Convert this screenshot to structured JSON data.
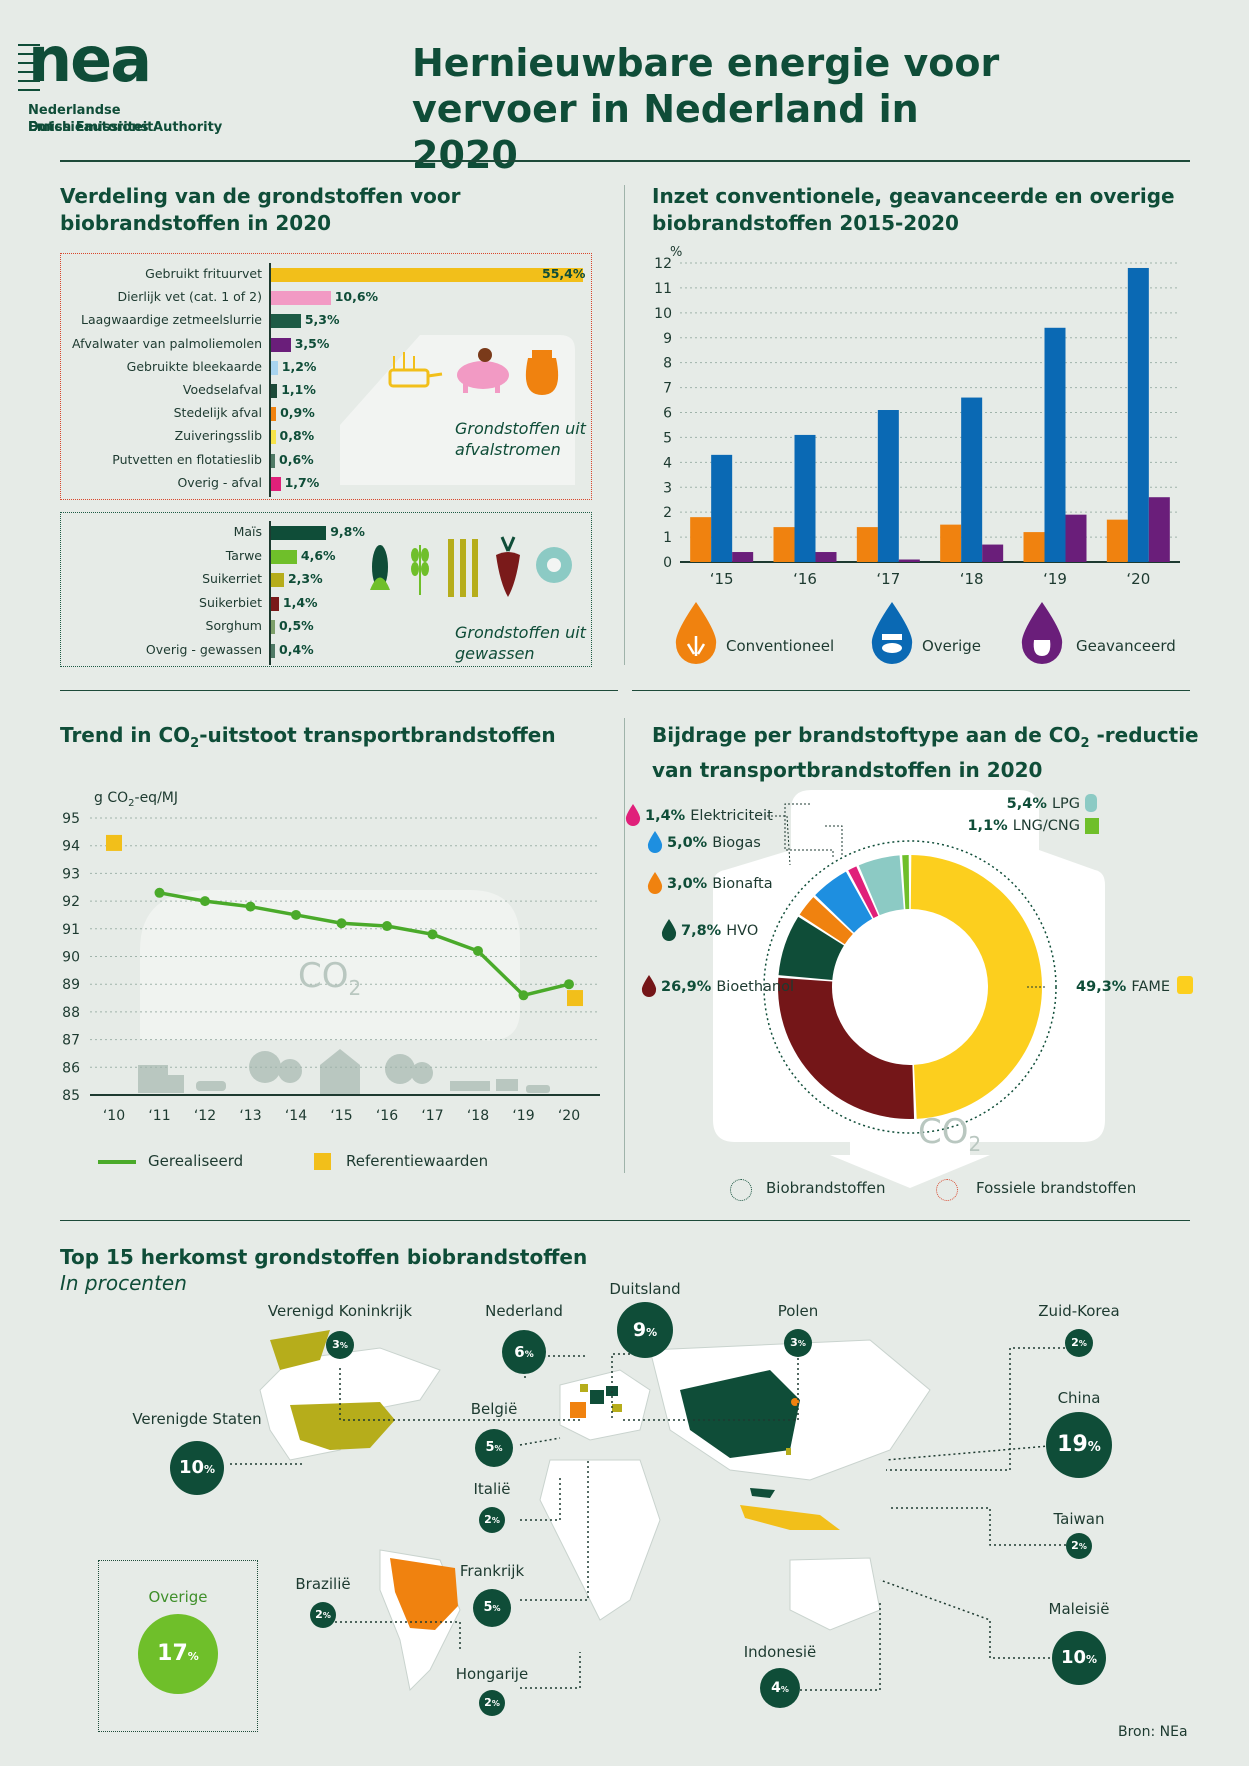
{
  "header": {
    "logo_word": "nea",
    "logo_line1": "Nederlandse Emissieautoriteit",
    "logo_line2": "Dutch Emissions Authority",
    "title_line1": "Hernieuwbare energie voor",
    "title_line2": "vervoer in Nederland in 2020"
  },
  "colors": {
    "dark_green": "#0f4d38",
    "orange": "#f0820f",
    "blue": "#0a69b4",
    "purple": "#6a1e7a",
    "line_green": "#4aaa2a",
    "yellow": "#f2bf1a",
    "pink": "#f29ac4"
  },
  "feedstock": {
    "title_line1": "Verdeling van de grondstoffen voor",
    "title_line2": "biobrandstoffen in 2020",
    "waste_label_line1": "Grondstoffen uit",
    "waste_label_line2": "afvalstromen",
    "crops_label_line1": "Grondstoffen uit",
    "crops_label_line2": "gewassen"
  },
  "usage": {
    "title_line1": "Inzet conventionele, geavanceerde en overige",
    "title_line2": "biobrandstoffen 2015-2020",
    "unit": "%",
    "legend": [
      "Conventioneel",
      "Overige",
      "Geavanceerd"
    ]
  },
  "trend": {
    "title_pre": "Trend in CO",
    "title_sub": "2",
    "title_post": "-uitstoot transportbrandstoffen",
    "unit_pre": "g CO",
    "unit_sub": "2",
    "unit_post": "-eq/MJ",
    "co2_label": "CO",
    "co2_sub": "2",
    "legend_realised": "Gerealiseerd",
    "legend_reference": "Referentiewaarden"
  },
  "reduction": {
    "title_pre": "Bijdrage per brandstoftype aan de CO",
    "title_sub": "2",
    "title_post": " -reductie",
    "title_line2": "van transportbrandstoffen in 2020",
    "co2_label": "CO",
    "co2_sub": "2",
    "legend_bio": "Biobrandstoffen",
    "legend_fossil": "Fossiele brandstoffen"
  },
  "origin": {
    "title": "Top 15 herkomst grondstoffen biobrandstoffen",
    "subtitle": "In procenten",
    "overige_label": "Overige",
    "overige_value": "17",
    "source": "Bron: NEa",
    "countries": [
      {
        "name": "Verenigd Koninkrijk",
        "value": "3"
      },
      {
        "name": "Nederland",
        "value": "6"
      },
      {
        "name": "Duitsland",
        "value": "9"
      },
      {
        "name": "Polen",
        "value": "3"
      },
      {
        "name": "Zuid-Korea",
        "value": "2"
      },
      {
        "name": "Verenigde Staten",
        "value": "10"
      },
      {
        "name": "België",
        "value": "5"
      },
      {
        "name": "China",
        "value": "19"
      },
      {
        "name": "Italië",
        "value": "2"
      },
      {
        "name": "Taiwan",
        "value": "2"
      },
      {
        "name": "Brazilië",
        "value": "2"
      },
      {
        "name": "Frankrijk",
        "value": "5"
      },
      {
        "name": "Maleisië",
        "value": "10"
      },
      {
        "name": "Indonesië",
        "value": "4"
      },
      {
        "name": "Hongarije",
        "value": "2"
      }
    ]
  },
  "chart_data": [
    {
      "type": "bar",
      "title": "Verdeling van de grondstoffen voor biobrandstoffen in 2020",
      "orientation": "horizontal",
      "groups": [
        {
          "name": "Grondstoffen uit afvalstromen",
          "categories": [
            "Gebruikt frituurvet",
            "Dierlijk vet (cat. 1 of 2)",
            "Laagwaardige zetmeelslurrie",
            "Afvalwater van palmoliemolen",
            "Gebruikte bleekaarde",
            "Voedselafval",
            "Stedelijk afval",
            "Zuiveringsslib",
            "Putvetten en flotatieslib",
            "Overig - afval"
          ],
          "values": [
            55.4,
            10.6,
            5.3,
            3.5,
            1.2,
            1.1,
            0.9,
            0.8,
            0.6,
            1.7
          ],
          "labels": [
            "55,4%",
            "10,6%",
            "5,3%",
            "3,5%",
            "1,2%",
            "1,1%",
            "0,9%",
            "0,8%",
            "0,6%",
            "1,7%"
          ],
          "colors": [
            "#f2bf1a",
            "#f29ac4",
            "#1d5b45",
            "#6a1e7a",
            "#a8d4ef",
            "#1d4a39",
            "#f0820f",
            "#f7e34a",
            "#4f7a66",
            "#e0207a"
          ]
        },
        {
          "name": "Grondstoffen uit gewassen",
          "categories": [
            "Maïs",
            "Tarwe",
            "Suikerriet",
            "Suikerbiet",
            "Sorghum",
            "Overig - gewassen"
          ],
          "values": [
            9.8,
            4.6,
            2.3,
            1.4,
            0.5,
            0.4
          ],
          "labels": [
            "9,8%",
            "4,6%",
            "2,3%",
            "1,4%",
            "0,5%",
            "0,4%"
          ],
          "colors": [
            "#0f4d38",
            "#6fbf2a",
            "#b6ad1b",
            "#7a1a1a",
            "#7ea06a",
            "#4f7a66"
          ]
        }
      ]
    },
    {
      "type": "bar",
      "title": "Inzet conventionele, geavanceerde en overige biobrandstoffen 2015-2020",
      "categories": [
        "‘15",
        "‘16",
        "‘17",
        "‘18",
        "‘19",
        "‘20"
      ],
      "series": [
        {
          "name": "Conventioneel",
          "values": [
            1.8,
            1.4,
            1.4,
            1.5,
            1.2,
            1.7
          ]
        },
        {
          "name": "Overige",
          "values": [
            4.3,
            5.1,
            6.1,
            6.6,
            9.4,
            11.8
          ]
        },
        {
          "name": "Geavanceerd",
          "values": [
            0.4,
            0.4,
            0.1,
            0.7,
            1.9,
            2.6
          ]
        }
      ],
      "ylabel": "%",
      "ylim": [
        0,
        12
      ],
      "yticks": [
        0,
        1,
        2,
        3,
        4,
        5,
        6,
        7,
        8,
        9,
        10,
        11,
        12
      ],
      "grid": true
    },
    {
      "type": "line",
      "title": "Trend in CO2-uitstoot transportbrandstoffen",
      "ylabel": "g CO2-eq/MJ",
      "x": [
        "‘10",
        "‘11",
        "‘12",
        "‘13",
        "‘14",
        "‘15",
        "‘16",
        "‘17",
        "‘18",
        "‘19",
        "‘20"
      ],
      "series": [
        {
          "name": "Gerealiseerd",
          "x": [
            "‘11",
            "‘12",
            "‘13",
            "‘14",
            "‘15",
            "‘16",
            "‘17",
            "‘18",
            "‘19",
            "‘20"
          ],
          "values": [
            92.3,
            92.0,
            91.8,
            91.5,
            91.2,
            91.1,
            90.8,
            90.2,
            88.6,
            89.0
          ]
        },
        {
          "name": "Referentiewaarden",
          "x": [
            "‘10",
            "‘20"
          ],
          "values": [
            94.1,
            88.5
          ]
        }
      ],
      "ylim": [
        85,
        95
      ],
      "yticks": [
        85,
        86,
        87,
        88,
        89,
        90,
        91,
        92,
        93,
        94,
        95
      ],
      "grid": true
    },
    {
      "type": "pie",
      "title": "Bijdrage per brandstoftype aan de CO2 -reductie van transportbrandstoffen in 2020",
      "donut": true,
      "categories": [
        "FAME",
        "Bioethanol",
        "HVO",
        "Bionafta",
        "Biogas",
        "Elektriciteit",
        "LPG",
        "LNG/CNG"
      ],
      "values": [
        49.3,
        26.9,
        7.8,
        3.0,
        5.0,
        1.4,
        5.4,
        1.1
      ],
      "labels": [
        "49,3%",
        "26,9%",
        "7,8%",
        "3,0%",
        "5,0%",
        "1,4%",
        "5,4%",
        "1,1%"
      ],
      "colors": [
        "#fccf1e",
        "#741618",
        "#0f4d38",
        "#f0820f",
        "#1e8fe0",
        "#e0207a",
        "#8ccac4",
        "#6fbf2a"
      ]
    }
  ]
}
